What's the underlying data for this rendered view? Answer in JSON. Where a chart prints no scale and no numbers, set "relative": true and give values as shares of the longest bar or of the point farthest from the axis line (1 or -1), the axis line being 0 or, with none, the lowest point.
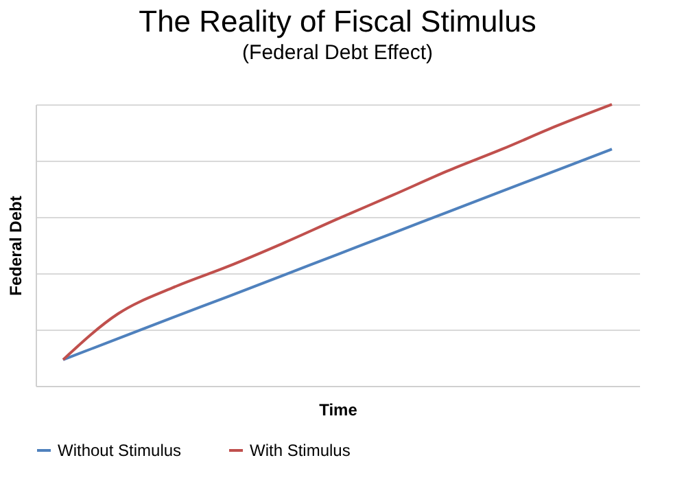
{
  "chart_data": {
    "type": "line",
    "title": "The Reality of Fiscal Stimulus",
    "subtitle": "(Federal Debt Effect)",
    "xlabel": "Time",
    "ylabel": "Federal Debt",
    "relative": true,
    "grid": "y",
    "legend": "bottom",
    "categories": [
      null,
      null,
      null,
      null,
      null,
      null,
      null,
      null,
      null,
      null,
      null
    ],
    "series": [
      {
        "name": "Without Stimulus",
        "color": "#4f81bd",
        "values": [
          0.093,
          0.168,
          0.243,
          0.317,
          0.392,
          0.467,
          0.542,
          0.617,
          0.692,
          0.766,
          0.841
        ]
      },
      {
        "name": "With Stimulus",
        "color": "#c0504d",
        "values": [
          0.093,
          0.256,
          0.349,
          0.424,
          0.506,
          0.593,
          0.677,
          0.763,
          0.841,
          0.924,
          1
        ]
      }
    ]
  }
}
